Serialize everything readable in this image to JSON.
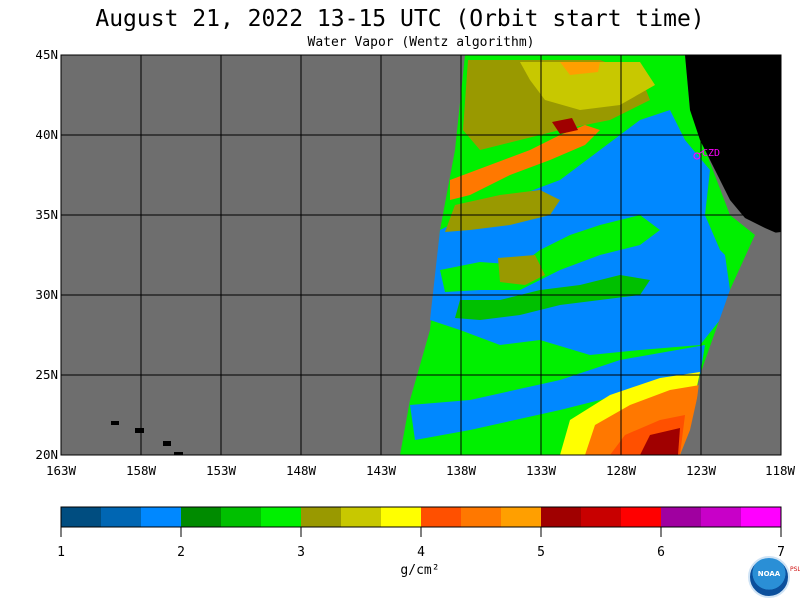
{
  "title": "August 21, 2022  13-15 UTC  (Orbit start time)",
  "subtitle": "Water Vapor (Wentz algorithm)",
  "lat_labels": [
    "45N",
    "40N",
    "35N",
    "30N",
    "25N",
    "20N"
  ],
  "lon_labels": [
    "163W",
    "158W",
    "153W",
    "148W",
    "143W",
    "138W",
    "133W",
    "128W",
    "123W",
    "118W"
  ],
  "colorbar": {
    "tick_labels": [
      "1",
      "2",
      "3",
      "4",
      "5",
      "6",
      "7"
    ],
    "units": "g/cm²",
    "colors": [
      "#004d80",
      "#0066b3",
      "#0088ff",
      "#008b00",
      "#00c000",
      "#00f000",
      "#999900",
      "#c8c800",
      "#ffff00",
      "#ff5000",
      "#ff7800",
      "#ff9f00",
      "#a00000",
      "#c80000",
      "#ff0000",
      "#a000a0",
      "#c800c8",
      "#ff00ff"
    ]
  },
  "map": {
    "lon_range": [
      -163,
      -118
    ],
    "lat_range": [
      20,
      45
    ],
    "station_label": "CZD",
    "colors": {
      "missing": "#6e6e6e",
      "land": "#000000",
      "grid": "#000000",
      "station": "#ff00ff"
    }
  },
  "logo": {
    "text": "NOAA",
    "side_text": "PSL"
  }
}
